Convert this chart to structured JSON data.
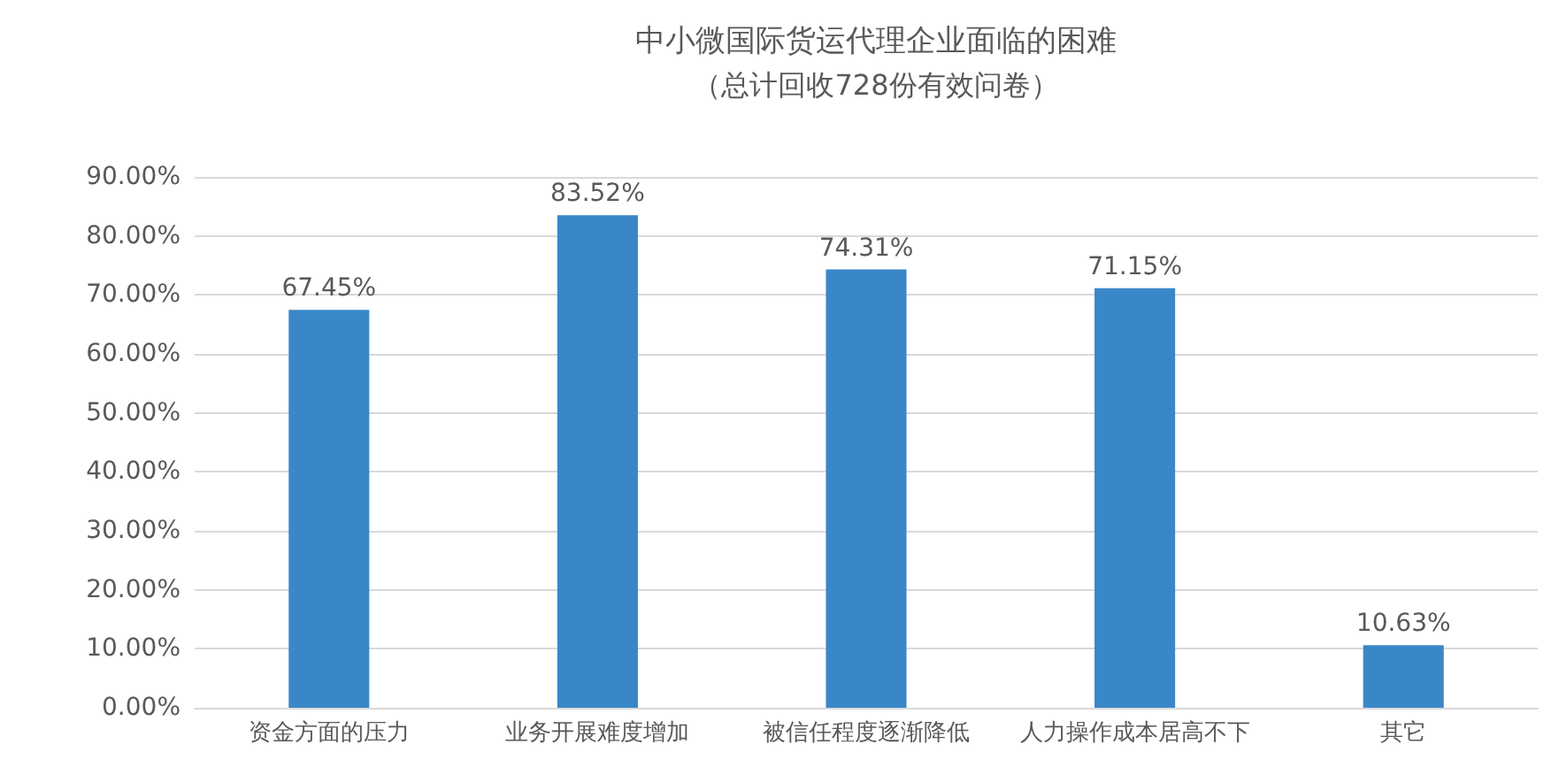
{
  "chart_data": {
    "type": "bar",
    "title": "中小微国际货运代理企业面临的困难",
    "subtitle": "（总计回收728份有效问卷）",
    "categories": [
      "资金方面的压力",
      "业务开展难度增加",
      "被信任程度逐渐降低",
      "人力操作成本居高不下",
      "其它"
    ],
    "values": [
      67.45,
      83.52,
      74.31,
      71.15,
      10.63
    ],
    "value_labels": [
      "67.45%",
      "83.52%",
      "74.31%",
      "71.15%",
      "10.63%"
    ],
    "color": "#3a87c8",
    "ylim": [
      0,
      90
    ],
    "yticks": [
      {
        "value": 0,
        "label": "0.00%"
      },
      {
        "value": 10,
        "label": "10.00%"
      },
      {
        "value": 20,
        "label": "20.00%"
      },
      {
        "value": 30,
        "label": "30.00%"
      },
      {
        "value": 40,
        "label": "40.00%"
      },
      {
        "value": 50,
        "label": "50.00%"
      },
      {
        "value": 60,
        "label": "60.00%"
      },
      {
        "value": 70,
        "label": "70.00%"
      },
      {
        "value": 80,
        "label": "80.00%"
      },
      {
        "value": 90,
        "label": "90.00%"
      }
    ],
    "grid": "y"
  }
}
